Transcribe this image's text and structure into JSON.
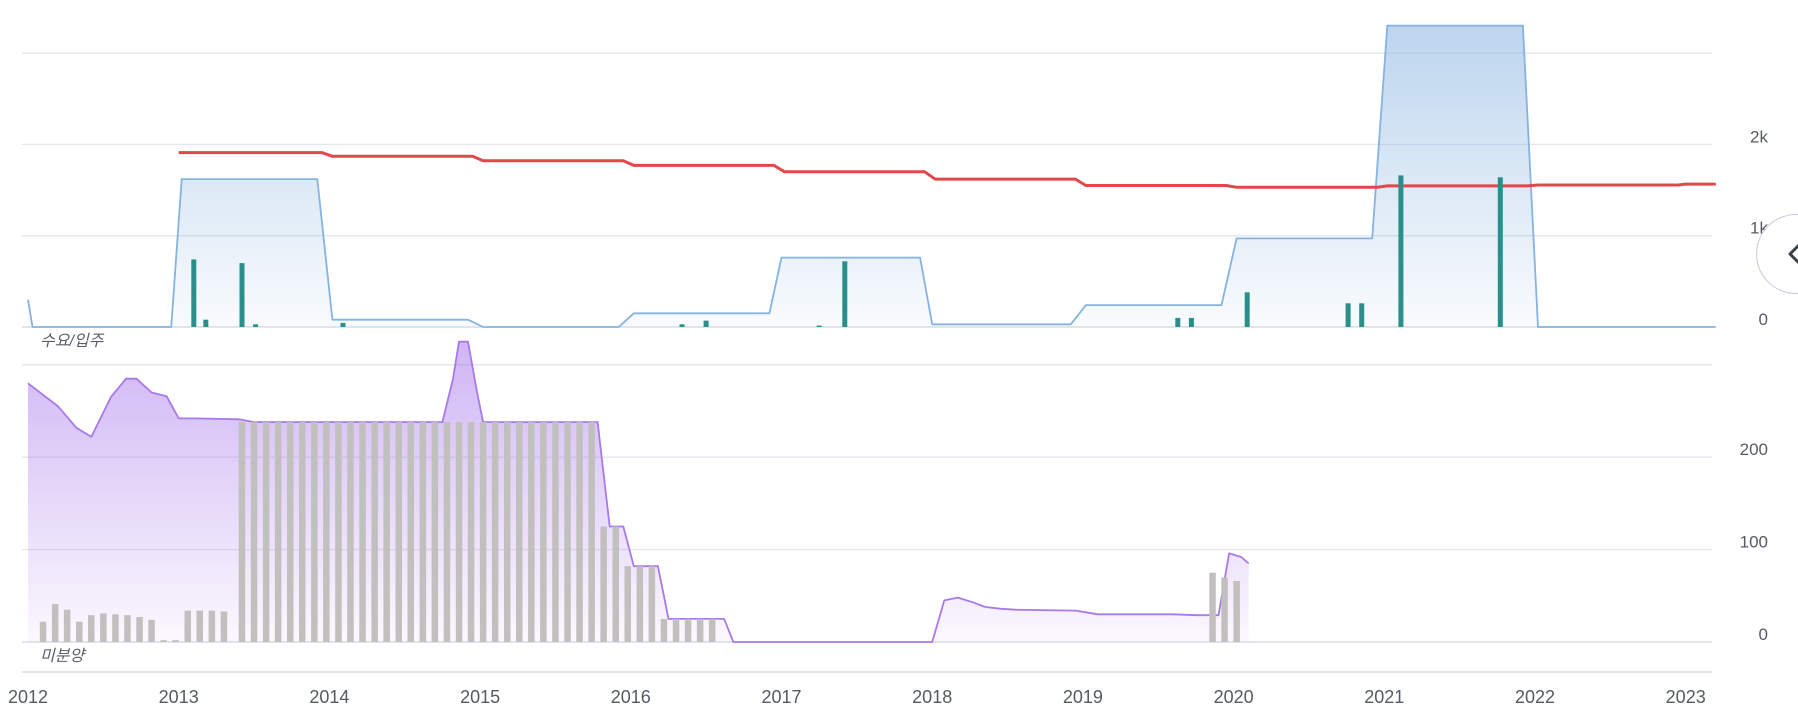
{
  "chart_data": [
    {
      "type": "line",
      "title": "",
      "panel_label": "수요/입주",
      "x_range": [
        2012.0,
        2023.2
      ],
      "yticks": [
        "0",
        "1k",
        "2k"
      ],
      "ylim": [
        0,
        3300
      ],
      "grid": true,
      "series": [
        {
          "kind": "area",
          "color": "#86b3e0",
          "points": [
            [
              2012.0,
              300
            ],
            [
              2012.03,
              0
            ],
            [
              2012.95,
              0
            ],
            [
              2013.02,
              1620
            ],
            [
              2013.92,
              1620
            ],
            [
              2014.02,
              80
            ],
            [
              2014.92,
              80
            ],
            [
              2015.02,
              0
            ],
            [
              2015.92,
              0
            ],
            [
              2016.02,
              150
            ],
            [
              2016.92,
              150
            ],
            [
              2017.0,
              760
            ],
            [
              2017.92,
              760
            ],
            [
              2018.0,
              30
            ],
            [
              2018.92,
              30
            ],
            [
              2019.02,
              240
            ],
            [
              2019.92,
              240
            ],
            [
              2020.02,
              970
            ],
            [
              2020.92,
              970
            ],
            [
              2021.02,
              3300
            ],
            [
              2021.92,
              3300
            ],
            [
              2022.02,
              0
            ],
            [
              2023.2,
              0
            ]
          ]
        },
        {
          "kind": "line",
          "color": "#e0484b",
          "points": [
            [
              2013.0,
              1910
            ],
            [
              2013.95,
              1910
            ],
            [
              2014.02,
              1870
            ],
            [
              2014.95,
              1870
            ],
            [
              2015.02,
              1820
            ],
            [
              2015.95,
              1820
            ],
            [
              2016.02,
              1770
            ],
            [
              2016.95,
              1770
            ],
            [
              2017.02,
              1700
            ],
            [
              2017.95,
              1700
            ],
            [
              2018.02,
              1620
            ],
            [
              2018.95,
              1620
            ],
            [
              2019.02,
              1550
            ],
            [
              2019.95,
              1550
            ],
            [
              2020.02,
              1530
            ],
            [
              2020.95,
              1530
            ],
            [
              2021.02,
              1545
            ],
            [
              2021.95,
              1545
            ],
            [
              2022.02,
              1555
            ],
            [
              2022.95,
              1555
            ],
            [
              2023.0,
              1565
            ],
            [
              2023.2,
              1565
            ]
          ]
        },
        {
          "kind": "bar",
          "color": "#2a8f8a",
          "points": [
            [
              2013.1,
              740
            ],
            [
              2013.18,
              80
            ],
            [
              2013.42,
              700
            ],
            [
              2013.51,
              30
            ],
            [
              2014.09,
              45
            ],
            [
              2016.34,
              30
            ],
            [
              2016.5,
              70
            ],
            [
              2017.25,
              15
            ],
            [
              2017.42,
              720
            ],
            [
              2019.63,
              100
            ],
            [
              2019.72,
              100
            ],
            [
              2020.09,
              380
            ],
            [
              2020.76,
              260
            ],
            [
              2020.85,
              260
            ],
            [
              2021.11,
              1660
            ],
            [
              2021.77,
              1640
            ]
          ]
        }
      ]
    },
    {
      "type": "line",
      "title": "",
      "panel_label": "미분양",
      "x_range": [
        2012.0,
        2023.2
      ],
      "xticks": [
        "2012",
        "2013",
        "2014",
        "2015",
        "2016",
        "2017",
        "2018",
        "2019",
        "2020",
        "2021",
        "2022",
        "2023"
      ],
      "yticks": [
        "0",
        "100",
        "200"
      ],
      "ylim": [
        0,
        300
      ],
      "grid": true,
      "series": [
        {
          "kind": "area",
          "color": "#a879ea",
          "points": [
            [
              2012.0,
              280
            ],
            [
              2012.2,
              255
            ],
            [
              2012.32,
              232
            ],
            [
              2012.42,
              222
            ],
            [
              2012.55,
              265
            ],
            [
              2012.65,
              285
            ],
            [
              2012.72,
              285
            ],
            [
              2012.82,
              270
            ],
            [
              2012.92,
              266
            ],
            [
              2013.0,
              242
            ],
            [
              2013.1,
              242
            ],
            [
              2013.4,
              241
            ],
            [
              2013.5,
              238
            ],
            [
              2014.0,
              238
            ],
            [
              2014.75,
              238
            ],
            [
              2014.82,
              285
            ],
            [
              2014.86,
              325
            ],
            [
              2014.92,
              325
            ],
            [
              2014.98,
              270
            ],
            [
              2015.02,
              238
            ],
            [
              2015.72,
              238
            ],
            [
              2015.78,
              238
            ],
            [
              2015.86,
              125
            ],
            [
              2015.95,
              125
            ],
            [
              2016.02,
              82
            ],
            [
              2016.18,
              82
            ],
            [
              2016.25,
              25
            ],
            [
              2016.62,
              25
            ],
            [
              2016.68,
              0
            ],
            [
              2018.0,
              0
            ],
            [
              2018.08,
              45
            ],
            [
              2018.17,
              48
            ],
            [
              2018.27,
              43
            ],
            [
              2018.35,
              38
            ],
            [
              2018.45,
              36
            ],
            [
              2018.55,
              35
            ],
            [
              2018.95,
              34
            ],
            [
              2019.1,
              30
            ],
            [
              2019.6,
              30
            ],
            [
              2019.75,
              29
            ],
            [
              2019.9,
              29
            ],
            [
              2019.97,
              96
            ],
            [
              2020.05,
              92
            ],
            [
              2020.1,
              85
            ]
          ]
        },
        {
          "kind": "bar",
          "color": "#c2bfbf",
          "points": [
            [
              2012.1,
              22
            ],
            [
              2012.18,
              41
            ],
            [
              2012.26,
              35
            ],
            [
              2012.34,
              22
            ],
            [
              2012.42,
              29
            ],
            [
              2012.5,
              31
            ],
            [
              2012.58,
              30
            ],
            [
              2012.66,
              29
            ],
            [
              2012.74,
              27
            ],
            [
              2012.82,
              24
            ],
            [
              2012.9,
              2
            ],
            [
              2012.98,
              2
            ],
            [
              2013.06,
              34
            ],
            [
              2013.14,
              34
            ],
            [
              2013.22,
              34
            ],
            [
              2013.3,
              33
            ],
            [
              2013.42,
              238
            ],
            [
              2013.5,
              238
            ],
            [
              2013.58,
              238
            ],
            [
              2013.66,
              238
            ],
            [
              2013.74,
              238
            ],
            [
              2013.82,
              238
            ],
            [
              2013.9,
              238
            ],
            [
              2013.98,
              238
            ],
            [
              2014.06,
              238
            ],
            [
              2014.14,
              238
            ],
            [
              2014.22,
              238
            ],
            [
              2014.3,
              238
            ],
            [
              2014.38,
              238
            ],
            [
              2014.46,
              238
            ],
            [
              2014.54,
              238
            ],
            [
              2014.62,
              238
            ],
            [
              2014.7,
              238
            ],
            [
              2014.78,
              238
            ],
            [
              2014.86,
              238
            ],
            [
              2014.94,
              238
            ],
            [
              2015.02,
              238
            ],
            [
              2015.1,
              238
            ],
            [
              2015.18,
              238
            ],
            [
              2015.26,
              238
            ],
            [
              2015.34,
              238
            ],
            [
              2015.42,
              238
            ],
            [
              2015.5,
              238
            ],
            [
              2015.58,
              238
            ],
            [
              2015.66,
              238
            ],
            [
              2015.74,
              238
            ],
            [
              2015.82,
              125
            ],
            [
              2015.9,
              125
            ],
            [
              2015.98,
              82
            ],
            [
              2016.06,
              82
            ],
            [
              2016.14,
              82
            ],
            [
              2016.22,
              25
            ],
            [
              2016.3,
              25
            ],
            [
              2016.38,
              25
            ],
            [
              2016.46,
              25
            ],
            [
              2016.54,
              25
            ],
            [
              2019.86,
              75
            ],
            [
              2019.94,
              70
            ],
            [
              2020.02,
              66
            ]
          ]
        }
      ]
    }
  ],
  "icons": {
    "collapse": "chevron-left-icon"
  }
}
